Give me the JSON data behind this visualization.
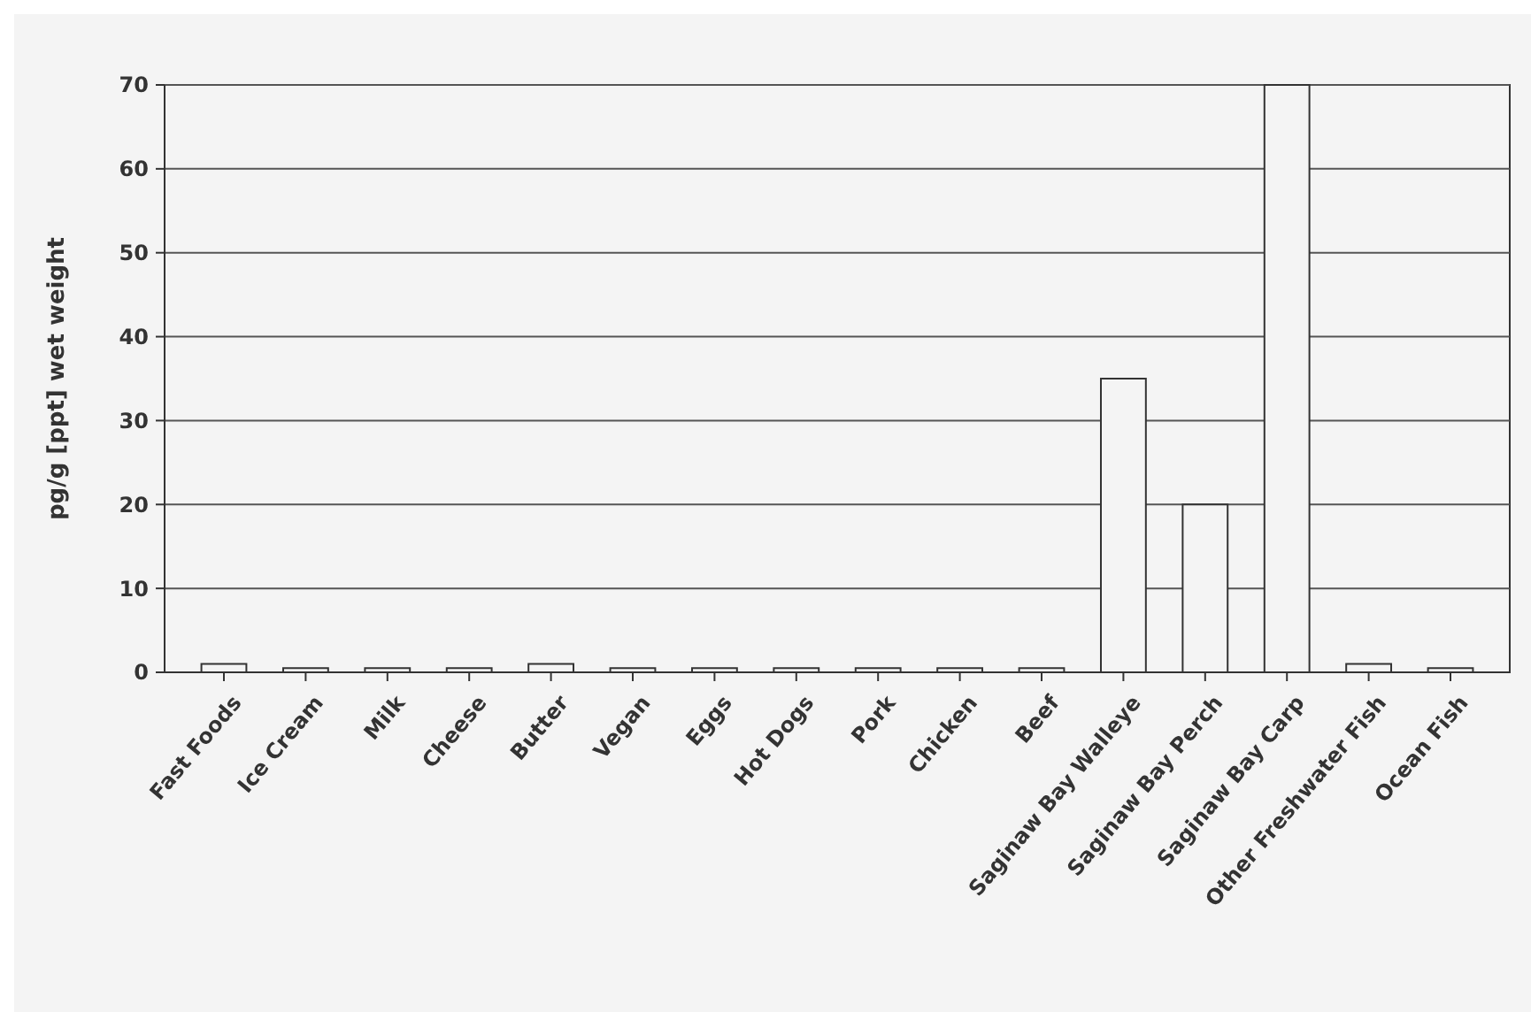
{
  "chart_data": {
    "type": "bar",
    "ylabel": "pg/g [ppt] wet weight",
    "categories": [
      "Fast Foods",
      "Ice Cream",
      "Milk",
      "Cheese",
      "Butter",
      "Vegan",
      "Eggs",
      "Hot Dogs",
      "Pork",
      "Chicken",
      "Beef",
      "Saginaw Bay Walleye",
      "Saginaw Bay Perch",
      "Saginaw Bay Carp",
      "Other Freshwater Fish",
      "Ocean Fish"
    ],
    "values": [
      1,
      0.5,
      0.5,
      0.5,
      1,
      0.5,
      0.5,
      0.5,
      0.5,
      0.5,
      0.5,
      35,
      20,
      70,
      1,
      0.5
    ],
    "color": "#f4f4f4",
    "ylim": [
      0,
      70
    ],
    "yticks": [
      0,
      10,
      20,
      30,
      40,
      50,
      60,
      70
    ],
    "grid": "y"
  }
}
